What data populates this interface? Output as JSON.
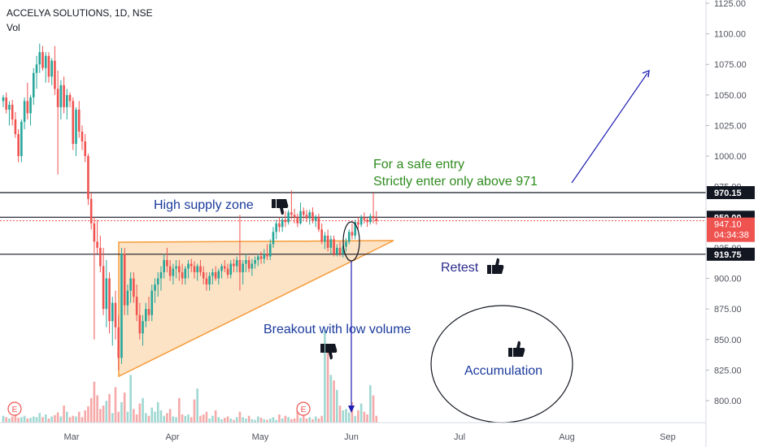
{
  "header": {
    "symbol_line": "ACCELYA SOLUTIONS, 1D, NSE",
    "volume_label": "Vol"
  },
  "colors": {
    "up": "#26a69a",
    "down": "#ef5350",
    "up_volume": "#9fd8d2",
    "down_volume": "#f5a9a9",
    "triangle_fill": "#fbd9b1",
    "triangle_line": "#f59c3c",
    "level_line": "#131722",
    "price_line": "#ef5350",
    "arrow": "#1e1eb4",
    "annotation_blue": "#1a3a9c",
    "annotation_green": "#2e8b1e",
    "annotation_navy": "#2a2a8c"
  },
  "chart_data": {
    "type": "candlestick",
    "title": "ACCELYA SOLUTIONS, 1D, NSE",
    "x_ticks": [
      "Mar",
      "Apr",
      "May",
      "Jun",
      "Jul",
      "Aug",
      "Sep"
    ],
    "y_ticks": [
      "800.00",
      "825.00",
      "850.00",
      "875.00",
      "900.00",
      "925.00",
      "950.00",
      "975.00",
      "1000.00",
      "1025.00",
      "1050.00",
      "1075.00",
      "1100.00",
      "1125.00"
    ],
    "ylim": [
      780,
      1125
    ],
    "horizontal_levels": [
      {
        "label": "970.15",
        "value": 970.15
      },
      {
        "label": "950.00",
        "value": 950
      },
      {
        "label": "919.75",
        "value": 919.75
      }
    ],
    "last_price": {
      "label": "947.10",
      "value": 947.1,
      "countdown": "04:34:38"
    },
    "candles_ohlc": [
      [
        1045,
        1050,
        1040,
        1048
      ],
      [
        1048,
        1052,
        1035,
        1038
      ],
      [
        1038,
        1045,
        1025,
        1042
      ],
      [
        1042,
        1046,
        1025,
        1030
      ],
      [
        1030,
        1036,
        1015,
        1018
      ],
      [
        1018,
        1022,
        995,
        1000
      ],
      [
        1000,
        1030,
        995,
        1028
      ],
      [
        1028,
        1048,
        1022,
        1045
      ],
      [
        1045,
        1060,
        1030,
        1035
      ],
      [
        1035,
        1050,
        1025,
        1048
      ],
      [
        1048,
        1072,
        1042,
        1068
      ],
      [
        1068,
        1082,
        1055,
        1075
      ],
      [
        1075,
        1092,
        1068,
        1085
      ],
      [
        1085,
        1090,
        1070,
        1072
      ],
      [
        1072,
        1085,
        1060,
        1082
      ],
      [
        1082,
        1085,
        1060,
        1065
      ],
      [
        1065,
        1080,
        1058,
        1078
      ],
      [
        1078,
        1090,
        1050,
        1055
      ],
      [
        1055,
        1070,
        985,
        1040
      ],
      [
        1040,
        1062,
        1030,
        1058
      ],
      [
        1058,
        1065,
        1035,
        1040
      ],
      [
        1040,
        1055,
        1030,
        1050
      ],
      [
        1050,
        1052,
        1040,
        1045
      ],
      [
        1045,
        1048,
        1005,
        1010
      ],
      [
        1010,
        1040,
        1000,
        1038
      ],
      [
        1038,
        1045,
        1015,
        1020
      ],
      [
        1020,
        1025,
        1005,
        1012
      ],
      [
        1012,
        1018,
        995,
        1000
      ],
      [
        1000,
        1002,
        960,
        965
      ],
      [
        965,
        970,
        940,
        945
      ],
      [
        945,
        950,
        850,
        930
      ],
      [
        930,
        948,
        920,
        925
      ],
      [
        925,
        935,
        905,
        910
      ],
      [
        910,
        925,
        870,
        875
      ],
      [
        875,
        915,
        860,
        900
      ],
      [
        900,
        905,
        855,
        865
      ],
      [
        865,
        885,
        845,
        880
      ],
      [
        880,
        890,
        850,
        860
      ],
      [
        860,
        870,
        825,
        835
      ],
      [
        835,
        925,
        830,
        920
      ],
      [
        920,
        925,
        870,
        878
      ],
      [
        878,
        895,
        870,
        890
      ],
      [
        890,
        905,
        880,
        900
      ],
      [
        900,
        905,
        880,
        885
      ],
      [
        885,
        895,
        865,
        870
      ],
      [
        870,
        880,
        850,
        855
      ],
      [
        855,
        870,
        845,
        865
      ],
      [
        865,
        880,
        860,
        875
      ],
      [
        875,
        885,
        865,
        870
      ],
      [
        870,
        895,
        865,
        890
      ],
      [
        890,
        900,
        880,
        895
      ],
      [
        895,
        905,
        885,
        900
      ],
      [
        900,
        910,
        890,
        905
      ],
      [
        905,
        920,
        900,
        915
      ],
      [
        915,
        925,
        905,
        910
      ],
      [
        910,
        915,
        898,
        902
      ],
      [
        902,
        912,
        895,
        908
      ],
      [
        908,
        915,
        900,
        910
      ],
      [
        910,
        915,
        898,
        905
      ],
      [
        905,
        912,
        895,
        900
      ],
      [
        900,
        910,
        895,
        908
      ],
      [
        908,
        915,
        900,
        912
      ],
      [
        912,
        916,
        905,
        910
      ],
      [
        910,
        914,
        900,
        905
      ],
      [
        905,
        912,
        898,
        910
      ],
      [
        910,
        915,
        902,
        905
      ],
      [
        905,
        910,
        895,
        900
      ],
      [
        900,
        905,
        890,
        895
      ],
      [
        895,
        905,
        890,
        902
      ],
      [
        902,
        908,
        895,
        905
      ],
      [
        905,
        910,
        898,
        900
      ],
      [
        900,
        908,
        895,
        906
      ],
      [
        906,
        912,
        900,
        910
      ],
      [
        910,
        915,
        905,
        908
      ],
      [
        908,
        912,
        900,
        903
      ],
      [
        903,
        915,
        900,
        912
      ],
      [
        912,
        916,
        905,
        910
      ],
      [
        910,
        918,
        905,
        915
      ],
      [
        915,
        952,
        890,
        905
      ],
      [
        905,
        915,
        895,
        912
      ],
      [
        912,
        920,
        905,
        915
      ],
      [
        915,
        918,
        905,
        908
      ],
      [
        908,
        916,
        902,
        912
      ],
      [
        912,
        918,
        908,
        915
      ],
      [
        915,
        920,
        910,
        918
      ],
      [
        918,
        922,
        912,
        916
      ],
      [
        916,
        924,
        912,
        920
      ],
      [
        920,
        928,
        915,
        918
      ],
      [
        918,
        932,
        915,
        928
      ],
      [
        928,
        942,
        925,
        938
      ],
      [
        938,
        948,
        932,
        945
      ],
      [
        945,
        950,
        938,
        942
      ],
      [
        942,
        950,
        938,
        948
      ],
      [
        948,
        955,
        942,
        946
      ],
      [
        946,
        956,
        944,
        954
      ],
      [
        954,
        972,
        948,
        952
      ],
      [
        952,
        957,
        945,
        950
      ],
      [
        950,
        953,
        942,
        945
      ],
      [
        945,
        962,
        944,
        955
      ],
      [
        955,
        958,
        948,
        952
      ],
      [
        952,
        956,
        946,
        949
      ],
      [
        949,
        956,
        944,
        954
      ],
      [
        954,
        958,
        945,
        947
      ],
      [
        947,
        952,
        942,
        950
      ],
      [
        950,
        953,
        938,
        940
      ],
      [
        940,
        945,
        928,
        930
      ],
      [
        930,
        938,
        924,
        935
      ],
      [
        935,
        940,
        922,
        925
      ],
      [
        925,
        935,
        920,
        932
      ],
      [
        932,
        935,
        918,
        920
      ],
      [
        920,
        928,
        918,
        925
      ],
      [
        925,
        930,
        918,
        920
      ],
      [
        920,
        928,
        917,
        926
      ],
      [
        926,
        933,
        922,
        930
      ],
      [
        930,
        940,
        928,
        938
      ],
      [
        938,
        945,
        932,
        935
      ],
      [
        935,
        948,
        932,
        946
      ],
      [
        946,
        950,
        940,
        944
      ],
      [
        944,
        952,
        942,
        950
      ],
      [
        950,
        954,
        945,
        948
      ],
      [
        948,
        950,
        942,
        946
      ],
      [
        946,
        953,
        944,
        951
      ],
      [
        951,
        970,
        945,
        949
      ],
      [
        949,
        955,
        944,
        947
      ]
    ],
    "volumes": [
      1.0,
      0.8,
      0.6,
      0.9,
      1.2,
      0.7,
      0.8,
      1.0,
      0.6,
      0.7,
      0.9,
      0.8,
      1.4,
      0.8,
      1.2,
      0.6,
      0.9,
      1.1,
      1.5,
      0.9,
      2.5,
      1.6,
      0.8,
      1.0,
      0.9,
      1.6,
      0.8,
      1.8,
      2.4,
      3.6,
      6.0,
      4.0,
      2.0,
      2.5,
      3.2,
      4.2,
      1.4,
      5.2,
      1.6,
      3.0,
      4.4,
      1.6,
      7.0,
      2.0,
      1.2,
      2.8,
      3.6,
      1.4,
      1.0,
      2.2,
      1.6,
      3.0,
      1.8,
      1.0,
      1.4,
      2.0,
      0.9,
      0.8,
      3.6,
      1.2,
      1.0,
      1.2,
      0.8,
      3.4,
      5.0,
      1.0,
      1.2,
      1.6,
      0.6,
      1.0,
      1.8,
      0.8,
      0.5,
      0.7,
      0.9,
      0.6,
      0.4,
      0.8,
      1.6,
      0.8,
      0.6,
      1.0,
      0.5,
      0.4,
      0.9,
      0.7,
      0.5,
      0.4,
      0.6,
      0.8,
      0.4,
      1.2,
      0.6,
      1.0,
      0.8,
      0.5,
      0.6,
      1.8,
      0.7,
      1.0,
      0.6,
      0.8,
      0.5,
      0.9,
      0.6,
      1.0,
      13.6,
      11.0,
      7.0,
      6.2,
      4.8,
      2.5,
      1.8,
      2.0,
      1.5,
      3.0,
      1.0,
      1.8,
      2.8,
      1.6,
      1.2,
      5.5,
      4.0,
      1.0
    ],
    "volume_max": 13.6
  },
  "annotations": {
    "high_supply_zone": "High supply zone",
    "safe_entry_line1": "For a safe entry",
    "safe_entry_line2": "Strictly enter only above  971",
    "breakout": "Breakout with low volume",
    "retest": "Retest",
    "accumulation": "Accumulation"
  },
  "icons": {
    "thumbs_down": "thumbs-down-icon",
    "thumbs_up": "thumbs-up-icon",
    "earnings": "earnings-marker-icon"
  },
  "earnings_marker_label": "E"
}
